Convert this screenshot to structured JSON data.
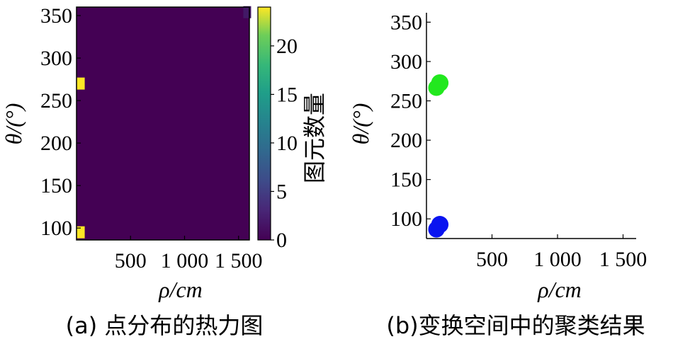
{
  "chart_data": [
    {
      "type": "heatmap",
      "xlabel": "ρ/cm",
      "ylabel": "θ/(°)",
      "x_tick_labels": [
        "500",
        "1 000",
        "1 500"
      ],
      "x_ticks": [
        500,
        1000,
        1500
      ],
      "xlim": [
        0,
        1600
      ],
      "y_ticks": [
        100,
        150,
        200,
        250,
        300,
        350
      ],
      "ylim": [
        86,
        360
      ],
      "colorbar": {
        "label": "图元数量",
        "ticks": [
          0,
          5,
          10,
          15,
          20
        ],
        "range": [
          0,
          24
        ],
        "colormap": "viridis"
      },
      "background_value": 0,
      "cells": [
        {
          "x": 40,
          "y": 95,
          "value": 24
        },
        {
          "x": 40,
          "y": 270,
          "value": 24
        },
        {
          "x": 1580,
          "y": 354,
          "value": 2
        }
      ],
      "caption": "(a) 点分布的热力图"
    },
    {
      "type": "scatter",
      "xlabel": "ρ/cm",
      "ylabel": "θ/(°)",
      "x_tick_labels": [
        "500",
        "1 000",
        "1 500"
      ],
      "x_ticks": [
        500,
        1000,
        1500
      ],
      "xlim": [
        0,
        1600
      ],
      "y_ticks": [
        100,
        150,
        200,
        250,
        300,
        350
      ],
      "ylim": [
        75,
        362
      ],
      "series": [
        {
          "color": "#22e81e",
          "cx": 90,
          "cy": 270,
          "rx": 40,
          "ry": 11
        },
        {
          "color": "#0a14f0",
          "cx": 90,
          "cy": 90,
          "rx": 40,
          "ry": 11
        }
      ],
      "caption": "(b)变换空间中的聚类结果"
    }
  ]
}
